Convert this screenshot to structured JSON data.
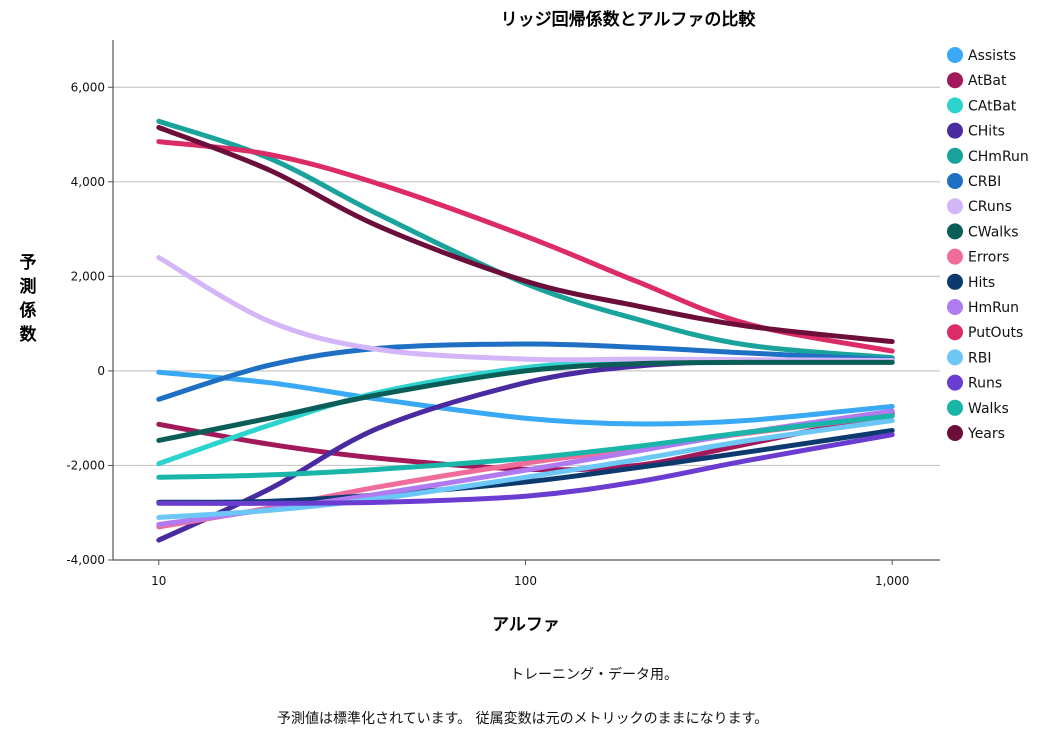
{
  "chart_data": {
    "type": "line",
    "title": "リッジ回帰係数とアルファの比較",
    "xlabel": "アルファ",
    "ylabel": "予測係数",
    "xscale": "log",
    "xlim": [
      7.5,
      1350
    ],
    "ylim": [
      -4000,
      7000
    ],
    "xticks": [
      10,
      100,
      1000
    ],
    "xtick_labels": [
      "10",
      "100",
      "1,000"
    ],
    "yticks": [
      -4000,
      -2000,
      0,
      2000,
      4000,
      6000
    ],
    "ytick_labels": [
      "-4,000",
      "-2,000",
      "0",
      "2,000",
      "4,000",
      "6,000"
    ],
    "grid": "horizontal",
    "legend": "right",
    "x": [
      10,
      20,
      40,
      100,
      200,
      400,
      1000
    ],
    "series": [
      {
        "name": "Assists",
        "color": "#39a9f5",
        "values": [
          -30,
          -250,
          -600,
          -1000,
          -1120,
          -1050,
          -750
        ]
      },
      {
        "name": "AtBat",
        "color": "#a2195b",
        "values": [
          -1130,
          -1550,
          -1850,
          -2080,
          -2000,
          -1550,
          -900
        ]
      },
      {
        "name": "CAtBat",
        "color": "#2dd4cf",
        "values": [
          -1960,
          -1150,
          -450,
          70,
          200,
          220,
          250
        ]
      },
      {
        "name": "CHits",
        "color": "#4a2aa0",
        "values": [
          -3580,
          -2500,
          -1200,
          -250,
          100,
          200,
          220
        ]
      },
      {
        "name": "CHmRun",
        "color": "#1aa39a",
        "values": [
          5280,
          4500,
          3300,
          1850,
          1100,
          550,
          280
        ]
      },
      {
        "name": "CRBI",
        "color": "#1f6fc4",
        "values": [
          -600,
          120,
          480,
          570,
          500,
          380,
          230
        ]
      },
      {
        "name": "CRuns",
        "color": "#d4b5f8",
        "values": [
          2400,
          1050,
          450,
          250,
          250,
          240,
          220
        ]
      },
      {
        "name": "CWalks",
        "color": "#0b5e57",
        "values": [
          -1470,
          -1000,
          -500,
          0,
          150,
          180,
          180
        ]
      },
      {
        "name": "Errors",
        "color": "#f06c9b",
        "values": [
          -3300,
          -2900,
          -2450,
          -1950,
          -1650,
          -1320,
          -950
        ]
      },
      {
        "name": "Hits",
        "color": "#0d3a6e",
        "values": [
          -2780,
          -2760,
          -2620,
          -2350,
          -2050,
          -1720,
          -1260
        ]
      },
      {
        "name": "HmRun",
        "color": "#b07af0",
        "values": [
          -3250,
          -2930,
          -2600,
          -2100,
          -1700,
          -1300,
          -850
        ]
      },
      {
        "name": "PutOuts",
        "color": "#dc2b65",
        "values": [
          4850,
          4580,
          3950,
          2850,
          1900,
          1000,
          420
        ]
      },
      {
        "name": "RBI",
        "color": "#6cc7f7",
        "values": [
          -3100,
          -2950,
          -2700,
          -2250,
          -1880,
          -1480,
          -1050
        ]
      },
      {
        "name": "Runs",
        "color": "#6a3dd0",
        "values": [
          -2800,
          -2800,
          -2780,
          -2650,
          -2350,
          -1900,
          -1350
        ]
      },
      {
        "name": "Walks",
        "color": "#18b5a8",
        "values": [
          -2250,
          -2200,
          -2080,
          -1850,
          -1600,
          -1300,
          -950
        ]
      },
      {
        "name": "Years",
        "color": "#6b0f3a",
        "values": [
          5150,
          4250,
          3050,
          1900,
          1380,
          950,
          620
        ]
      }
    ]
  },
  "notes": {
    "line1": "トレーニング・データ用。",
    "line2": "予測値は標準化されています。 従属変数は元のメトリックのままになります。"
  }
}
